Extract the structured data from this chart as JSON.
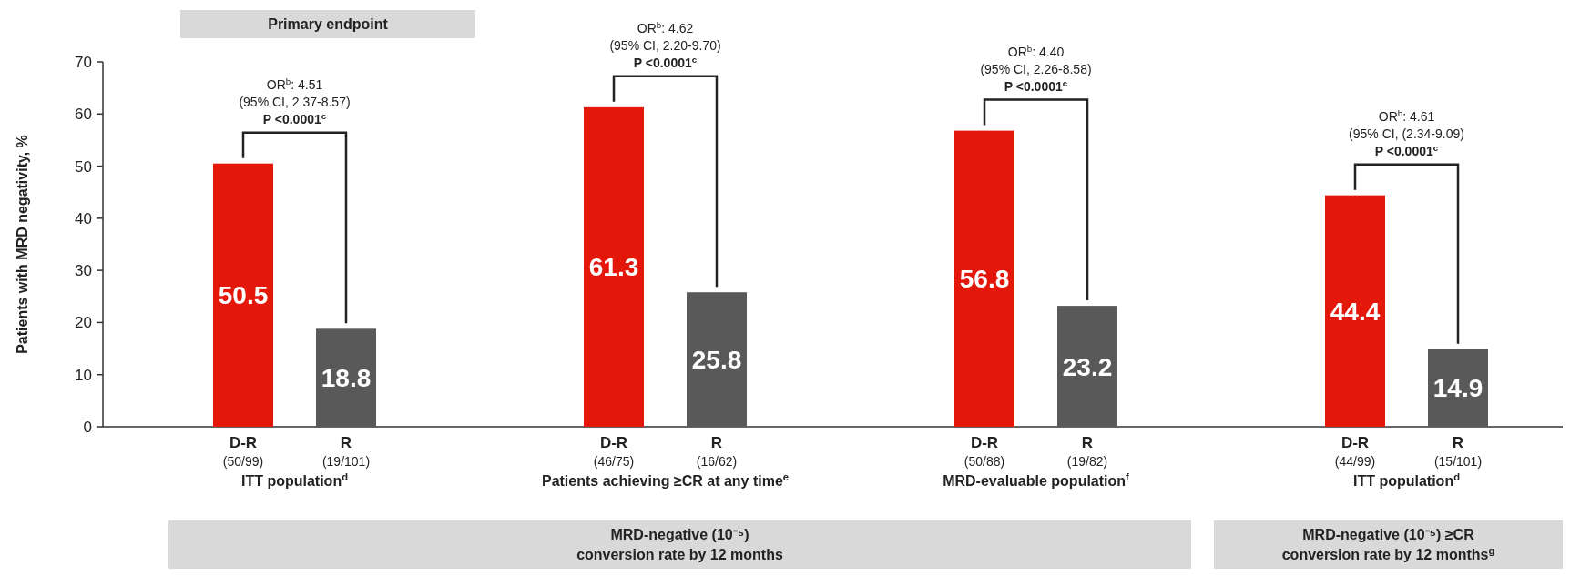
{
  "chart_data": {
    "type": "bar",
    "ylabel": "Patients with MRD negativity, %",
    "categories": [
      "D-R\n(50/99)",
      "R\n(19/101)",
      "D-R\n(46/75)",
      "R\n(16/62)",
      "D-R\n(50/88)",
      "R\n(19/82)",
      "D-R\n(44/99)",
      "R\n(15/101)"
    ],
    "values": [
      50.5,
      18.8,
      61.3,
      25.8,
      56.8,
      23.2,
      44.4,
      14.9
    ],
    "colors": [
      "#e3170a",
      "#595959",
      "#e3170a",
      "#595959",
      "#e3170a",
      "#595959",
      "#e3170a",
      "#595959"
    ],
    "data_labels": true,
    "ylim": [
      0,
      70
    ],
    "yticks": [
      0,
      10,
      20,
      30,
      40,
      50,
      60,
      70
    ],
    "annotations": [
      "OR$^{b}$: 4.51",
      "(95% CI, 2.37-8.57)",
      "P <0.0001$^{c}$",
      "OR$^{b}$: 4.62",
      "(95% CI, 2.20-9.70)",
      "P <0.0001$^{c}$",
      "OR$^{b}$: 4.40",
      "(95% CI, 2.26-8.58)",
      "P <0.0001$^{c}$",
      "OR$^{b}$: 4.61",
      "(95% CI, (2.34-9.09)",
      "P <0.0001$^{c}$",
      "ITT population$^{d}$",
      "Patients achieving ≥CR at any time$^{e}$",
      "MRD-evaluable population$^{f}$",
      "ITT population$^{d}$",
      "MRD-negative (10⁻⁵)\nconversion rate by 12 months",
      "MRD-negative (10⁻⁵) ≥CR\nconversion rate by 12 months$^{g}$",
      "Primary endpoint"
    ]
  }
}
